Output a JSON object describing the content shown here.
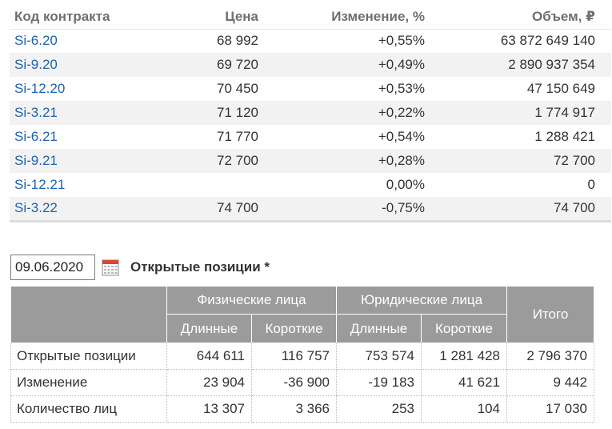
{
  "contracts": {
    "headers": {
      "code": "Код контракта",
      "price": "Цена",
      "change": "Изменение, %",
      "volume": "Объем, ₽"
    },
    "rows": [
      {
        "code": "Si-6.20",
        "price": "68 992",
        "change": "+0,55%",
        "volume": "63 872 649 140"
      },
      {
        "code": "Si-9.20",
        "price": "69 720",
        "change": "+0,49%",
        "volume": "2 890 937 354"
      },
      {
        "code": "Si-12.20",
        "price": "70 450",
        "change": "+0,53%",
        "volume": "47 150 649"
      },
      {
        "code": "Si-3.21",
        "price": "71 120",
        "change": "+0,22%",
        "volume": "1 774 917"
      },
      {
        "code": "Si-6.21",
        "price": "71 770",
        "change": "+0,54%",
        "volume": "1 288 421"
      },
      {
        "code": "Si-9.21",
        "price": "72 700",
        "change": "+0,28%",
        "volume": "72 700"
      },
      {
        "code": "Si-12.21",
        "price": "",
        "change": "0,00%",
        "volume": "0"
      },
      {
        "code": "Si-3.22",
        "price": "74 700",
        "change": "-0,75%",
        "volume": "74 700"
      }
    ]
  },
  "date_filter": {
    "value": "09.06.2020",
    "icon": "calendar-icon"
  },
  "positions": {
    "title": "Открытые позиции *",
    "headers": {
      "individuals": "Физические лица",
      "legal": "Юридические лица",
      "total": "Итого",
      "long": "Длинные",
      "short": "Короткие"
    },
    "rows": [
      {
        "label": "Открытые позиции",
        "ind_long": "644 611",
        "ind_short": "116 757",
        "leg_long": "753 574",
        "leg_short": "1 281 428",
        "total": "2 796 370"
      },
      {
        "label": "Изменение",
        "ind_long": "23 904",
        "ind_short": "-36 900",
        "leg_long": "-19 183",
        "leg_short": "41 621",
        "total": "9 442"
      },
      {
        "label": "Количество лиц",
        "ind_long": "13 307",
        "ind_short": "3 366",
        "leg_long": "253",
        "leg_short": "104",
        "total": "17 030"
      }
    ]
  },
  "colors": {
    "link": "#1f63ab",
    "positive": "#2e9b2e",
    "negative": "#d0303a",
    "header_bg": "#9b9b9b"
  }
}
